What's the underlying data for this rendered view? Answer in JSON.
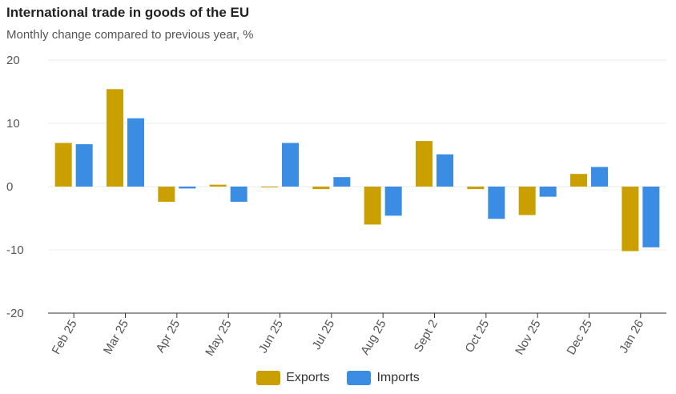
{
  "chart_data": {
    "type": "bar",
    "title": "International trade in goods of the EU",
    "subtitle": "Monthly change compared to previous year, %",
    "categories": [
      "Feb 25",
      "Mar 25",
      "Apr 25",
      "May 25",
      "Jun 25",
      "Jul 25",
      "Aug 25",
      "Sept 2",
      "Oct 25",
      "Nov 25",
      "Dec 25",
      "Jan 26"
    ],
    "series": [
      {
        "name": "Exports",
        "color": "#c9a000",
        "values": [
          6.9,
          15.4,
          -2.4,
          0.3,
          -0.1,
          -0.4,
          -6.0,
          7.2,
          -0.4,
          -4.5,
          2.0,
          -10.2
        ]
      },
      {
        "name": "Imports",
        "color": "#3b8de4",
        "values": [
          6.7,
          10.8,
          -0.3,
          -2.4,
          6.9,
          1.5,
          -4.6,
          5.1,
          -5.1,
          -1.6,
          3.1,
          -9.6
        ]
      }
    ],
    "ylim": [
      -20,
      20
    ],
    "yticks": [
      20,
      10,
      0,
      -10,
      -20
    ],
    "grid": true,
    "legend_position": "bottom-center"
  }
}
